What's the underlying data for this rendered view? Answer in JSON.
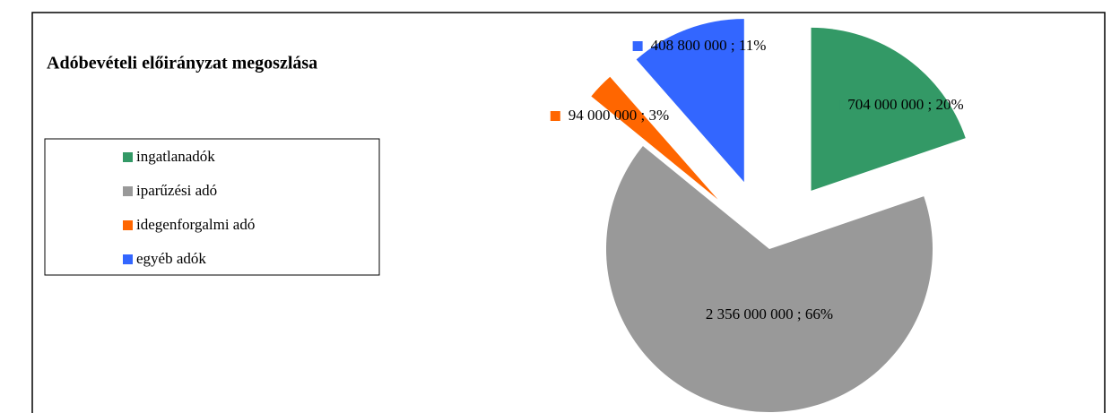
{
  "chart_data": {
    "type": "pie",
    "title": "Adóbevételi előirányzat megoszlása",
    "categories": [
      "ingatlanadók",
      "iparűzési adó",
      "idegenforgalmi adó",
      "egyéb adók"
    ],
    "values": [
      704000000,
      2356000000,
      94000000,
      408800000
    ],
    "value_labels": [
      "704 000 000 ; 20%",
      "2 356 000 000 ; 66%",
      "94 000 000 ; 3%",
      "408 800 000 ; 11%"
    ],
    "colors": [
      "#339966",
      "#999999",
      "#ff6600",
      "#3366ff"
    ],
    "legend": "left"
  }
}
